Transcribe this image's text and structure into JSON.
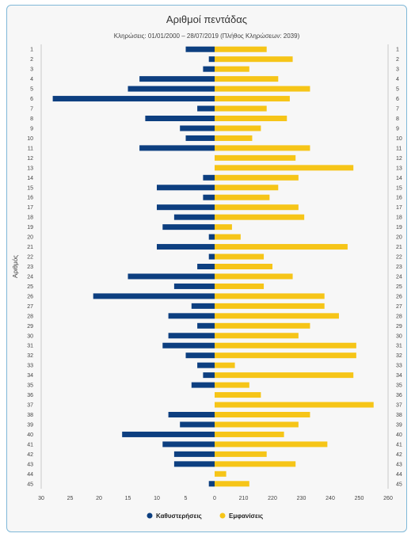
{
  "chart_data": {
    "type": "bar",
    "title": "Αριθμοί πεντάδας",
    "subtitle": "Κληρώσεις: 01/01/2000 – 28/07/2019 (Πλήθος Κληρώσεων: 2039)",
    "ylabel": "Αριθμός",
    "categories": [
      "1",
      "2",
      "3",
      "4",
      "5",
      "6",
      "7",
      "8",
      "9",
      "10",
      "11",
      "12",
      "13",
      "14",
      "15",
      "16",
      "17",
      "18",
      "19",
      "20",
      "21",
      "22",
      "23",
      "24",
      "25",
      "26",
      "27",
      "28",
      "29",
      "30",
      "31",
      "32",
      "33",
      "34",
      "35",
      "36",
      "37",
      "38",
      "39",
      "40",
      "41",
      "42",
      "43",
      "44",
      "45"
    ],
    "left_axis": {
      "ticks": [
        "30",
        "25",
        "20",
        "15",
        "10",
        "5",
        "0"
      ],
      "range": [
        30,
        0
      ]
    },
    "right_axis": {
      "ticks": [
        "210",
        "220",
        "230",
        "240",
        "250",
        "260"
      ],
      "range": [
        200,
        260
      ]
    },
    "series": [
      {
        "name": "Καθυστερήσεις",
        "color": "#0d3f80",
        "values": [
          5,
          1,
          2,
          13,
          15,
          28,
          3,
          12,
          6,
          5,
          13,
          0,
          0,
          2,
          10,
          2,
          10,
          7,
          9,
          1,
          10,
          1,
          3,
          15,
          7,
          21,
          4,
          8,
          3,
          8,
          9,
          5,
          3,
          2,
          4,
          0,
          0,
          8,
          6,
          16,
          9,
          7,
          7,
          0,
          1
        ]
      },
      {
        "name": "Εμφανίσεις",
        "color": "#f6c518",
        "values": [
          218,
          227,
          212,
          222,
          233,
          226,
          218,
          225,
          216,
          213,
          233,
          228,
          248,
          229,
          222,
          219,
          229,
          231,
          206,
          209,
          246,
          217,
          220,
          227,
          217,
          238,
          238,
          243,
          233,
          229,
          249,
          249,
          207,
          248,
          212,
          216,
          255,
          233,
          229,
          224,
          239,
          218,
          228,
          204,
          212
        ]
      }
    ]
  }
}
